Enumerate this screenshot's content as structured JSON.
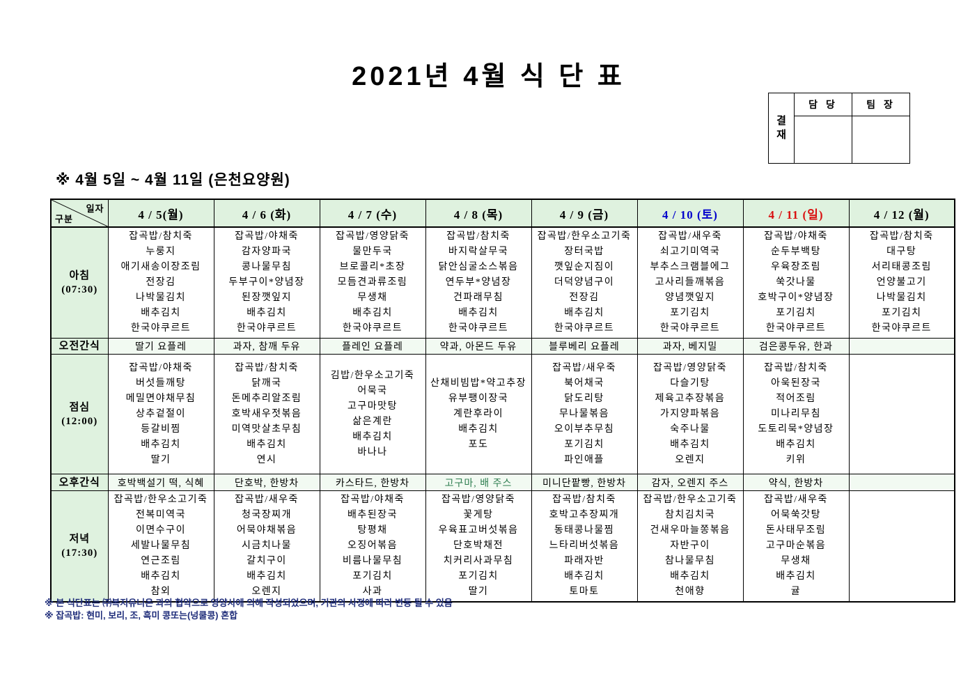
{
  "title": "2021년 4월 식 단 표",
  "approval": {
    "stamp_chars": [
      "결",
      "재"
    ],
    "columns": [
      "담 당",
      "팀 장"
    ]
  },
  "subtitle": "※ 4월 5일 ~ 4월 11일 (은천요양원)",
  "colors": {
    "header_bg": "#dff2df",
    "saturday": "#0000cc",
    "sunday": "#d90f0f",
    "special_snack": "#2e7d50",
    "footnote": "#1f2d7a"
  },
  "table": {
    "corner": {
      "top": "일자",
      "bottom": "구분"
    },
    "columns": [
      {
        "label": "4 / 5(월)",
        "color": "#000000"
      },
      {
        "label": "4 / 6 (화)",
        "color": "#000000"
      },
      {
        "label": "4 / 7 (수)",
        "color": "#000000"
      },
      {
        "label": "4 / 8 (목)",
        "color": "#000000"
      },
      {
        "label": "4 / 9 (금)",
        "color": "#000000"
      },
      {
        "label": "4 / 10 (토)",
        "color": "#0000cc"
      },
      {
        "label": "4 / 11 (일)",
        "color": "#d90f0f"
      },
      {
        "label": "4 / 12 (월)",
        "color": "#000000"
      }
    ],
    "rows": [
      {
        "key": "breakfast",
        "type": "meal",
        "label": "아침",
        "time": "(07:30)",
        "cells": [
          [
            "잡곡밥/참치죽",
            "누룽지",
            "애기새송이장조림",
            "전장김",
            "나박물김치",
            "배추김치",
            "한국야쿠르트"
          ],
          [
            "잡곡밥/야채죽",
            "감자양파국",
            "콩나물무침",
            "두부구이*양념장",
            "된장깻잎지",
            "배추김치",
            "한국야쿠르트"
          ],
          [
            "잡곡밥/영양닭죽",
            "물만두국",
            "브로콜리*초장",
            "모듬견과류조림",
            "무생채",
            "배추김치",
            "한국야쿠르트"
          ],
          [
            "잡곡밥/참치죽",
            "바지락살무국",
            "닭안심굴소스볶음",
            "연두부*양념장",
            "건파래무침",
            "배추김치",
            "한국야쿠르트"
          ],
          [
            "잡곡밥/한우소고기죽",
            "장터국밥",
            "깻잎순지짐이",
            "더덕양념구이",
            "전장김",
            "배추김치",
            "한국야쿠르트"
          ],
          [
            "잡곡밥/새우죽",
            "쇠고기미역국",
            "부추스크램블에그",
            "고사리들깨볶음",
            "양념깻잎지",
            "포기김치",
            "한국야쿠르트"
          ],
          [
            "잡곡밥/야채죽",
            "순두부백탕",
            "우육장조림",
            "쑥갓나물",
            "호박구이*양념장",
            "포기김치",
            "한국야쿠르트"
          ],
          [
            "잡곡밥/참치죽",
            "대구탕",
            "서리태콩조림",
            "언양불고기",
            "나박물김치",
            "포기김치",
            "한국야쿠르트"
          ]
        ]
      },
      {
        "key": "am_snack",
        "type": "snack",
        "label": "오전간식",
        "cells": [
          "딸기 요플레",
          "과자, 참깨 두유",
          "플레인 요플레",
          "약과, 아몬드 두유",
          "블루베리 요플레",
          "과자, 베지밀",
          "검은콩두유, 한과",
          ""
        ]
      },
      {
        "key": "lunch",
        "type": "meal",
        "label": "점심",
        "time": "(12:00)",
        "cells": [
          [
            "잡곡밥/야채죽",
            "버섯들깨탕",
            "메밀면야채무침",
            "상추겉절이",
            "등갈비찜",
            "배추김치",
            "딸기"
          ],
          [
            "잡곡밥/참치죽",
            "닭깨국",
            "돈메추리알조림",
            "호박새우젓볶음",
            "미역맛살초무침",
            "배추김치",
            "연시"
          ],
          [
            "김밥/한우소고기죽",
            "어묵국",
            "고구마맛탕",
            "삶은계란",
            "배추김치",
            "바나나"
          ],
          [
            "산채비빔밥*약고추장",
            "유부팽이장국",
            "계란후라이",
            "배추김치",
            "포도"
          ],
          [
            "잡곡밥/새우죽",
            "북어채국",
            "닭도리탕",
            "무나물볶음",
            "오이부추무침",
            "포기김치",
            "파인애플"
          ],
          [
            "잡곡밥/영양닭죽",
            "다슬기탕",
            "제육고추장볶음",
            "가지양파볶음",
            "숙주나물",
            "배추김치",
            "오렌지"
          ],
          [
            "잡곡밥/참치죽",
            "아욱된장국",
            "적어조림",
            "미나리무침",
            "도토리묵*양념장",
            "배추김치",
            "키위"
          ],
          []
        ]
      },
      {
        "key": "pm_snack",
        "type": "snack",
        "label": "오후간식",
        "cells": [
          "호박백설기 떡, 식혜",
          "단호박, 한방차",
          "카스타드, 한방차",
          {
            "text": "고구마, 배 주스",
            "color": "#2e7d50"
          },
          "미니단팥빵, 한방차",
          "감자, 오렌지 주스",
          "약식, 한방차",
          ""
        ]
      },
      {
        "key": "dinner",
        "type": "meal",
        "label": "저녁",
        "time": "(17:30)",
        "cells": [
          [
            "잡곡밥/한우소고기죽",
            "전복미역국",
            "이면수구이",
            "세발나물무침",
            "연근조림",
            "배추김치",
            "참외"
          ],
          [
            "잡곡밥/새우죽",
            "청국장찌개",
            "어묵야채볶음",
            "시금치나물",
            "갈치구이",
            "배추김치",
            "오렌지"
          ],
          [
            "잡곡밥/야채죽",
            "배추된장국",
            "탕평채",
            "오징어볶음",
            "비름나물무침",
            "포기김치",
            "사과"
          ],
          [
            "잡곡밥/영양닭죽",
            "꽃게탕",
            "우육표고버섯볶음",
            "단호박채전",
            "치커리사과무침",
            "포기김치",
            "딸기"
          ],
          [
            "잡곡밥/참치죽",
            "호박고추장찌개",
            "동태콩나물찜",
            "느타리버섯볶음",
            "파래자반",
            "배추김치",
            "토마토"
          ],
          [
            "잡곡밥/한우소고기죽",
            "참치김치국",
            "건새우마늘쫑볶음",
            "자반구이",
            "참나물무침",
            "배추김치",
            "천애향"
          ],
          [
            "잡곡밥/새우죽",
            "어묵쑥갓탕",
            "돈사태무조림",
            "고구마순볶음",
            "무생채",
            "배추김치",
            "귤"
          ],
          []
        ]
      }
    ]
  },
  "footnotes": [
    "※ 본 식단표는 ㈜복지유니온 과의 협약으로 영양사에 의해 작성되었으며, 기관의 사정에 따라 변동 될 수 있음",
    "※ 잡곡밥: 현미, 보리, 조, 흑미 콩또는(넝쿨콩) 혼합"
  ]
}
